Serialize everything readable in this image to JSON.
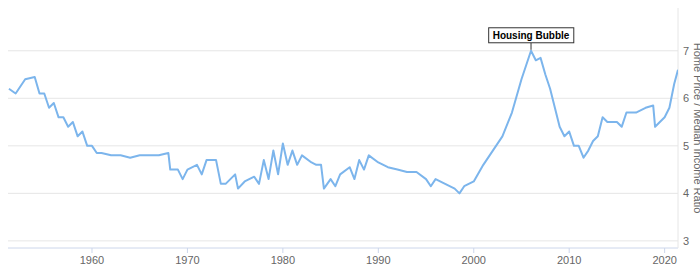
{
  "chart_data": {
    "type": "line",
    "y_label": "Home Price / Median Income Ratio",
    "color": "#7cb5ec",
    "grid": true,
    "xlim": [
      1951.2,
      2021.4
    ],
    "xticks": [
      1960,
      1970,
      1980,
      1990,
      2000,
      2010,
      2020
    ],
    "ylim": [
      2.85,
      7.9
    ],
    "yticks": [
      3,
      4,
      5,
      6,
      7
    ],
    "x": [
      1951.3,
      1952,
      1953,
      1954,
      1954.5,
      1955,
      1955.5,
      1956,
      1956.5,
      1957,
      1957.5,
      1958,
      1958.5,
      1959,
      1959.5,
      1960,
      1960.5,
      1961,
      1962,
      1963,
      1964,
      1965,
      1966,
      1967,
      1968,
      1968.2,
      1969,
      1969.5,
      1970,
      1971,
      1971.5,
      1972,
      1973,
      1973.5,
      1974,
      1975,
      1975.3,
      1976,
      1977,
      1977.5,
      1978,
      1978.5,
      1979,
      1979.5,
      1980,
      1980.5,
      1981,
      1981.5,
      1982,
      1983,
      1983.5,
      1984,
      1984.3,
      1985,
      1985.5,
      1986,
      1987,
      1987.5,
      1988,
      1988.5,
      1989,
      1990,
      1991,
      1992,
      1993,
      1994,
      1995,
      1995.5,
      1996,
      1997,
      1998,
      1998.5,
      1999,
      2000,
      2001,
      2002,
      2003,
      2004,
      2005,
      2005.5,
      2006,
      2006.5,
      2007,
      2007.5,
      2008,
      2008.5,
      2009,
      2009.5,
      2010,
      2010.5,
      2011,
      2011.5,
      2012,
      2012.5,
      2013,
      2013.5,
      2014,
      2015,
      2015.5,
      2016,
      2017,
      2018,
      2018.8,
      2019,
      2020,
      2020.5,
      2021,
      2021.4
    ],
    "values": [
      6.2,
      6.1,
      6.4,
      6.45,
      6.1,
      6.1,
      5.8,
      5.9,
      5.6,
      5.6,
      5.4,
      5.5,
      5.2,
      5.3,
      5.0,
      5.0,
      4.85,
      4.85,
      4.8,
      4.8,
      4.75,
      4.8,
      4.8,
      4.8,
      4.85,
      4.5,
      4.5,
      4.3,
      4.5,
      4.6,
      4.4,
      4.7,
      4.7,
      4.2,
      4.2,
      4.4,
      4.1,
      4.25,
      4.35,
      4.2,
      4.7,
      4.3,
      4.9,
      4.4,
      5.05,
      4.6,
      4.9,
      4.6,
      4.8,
      4.65,
      4.6,
      4.6,
      4.1,
      4.3,
      4.15,
      4.4,
      4.55,
      4.3,
      4.7,
      4.5,
      4.8,
      4.65,
      4.55,
      4.5,
      4.45,
      4.45,
      4.3,
      4.15,
      4.3,
      4.2,
      4.1,
      4.0,
      4.15,
      4.25,
      4.6,
      4.9,
      5.2,
      5.7,
      6.4,
      6.7,
      7.0,
      6.8,
      6.85,
      6.5,
      6.2,
      5.8,
      5.4,
      5.2,
      5.3,
      5.0,
      5.0,
      4.75,
      4.9,
      5.1,
      5.2,
      5.6,
      5.5,
      5.5,
      5.4,
      5.7,
      5.7,
      5.8,
      5.85,
      5.4,
      5.6,
      5.8,
      6.3,
      6.6
    ],
    "annotations": [
      {
        "text": "Housing Bubble",
        "x": 2006,
        "y": 7.0
      }
    ]
  }
}
